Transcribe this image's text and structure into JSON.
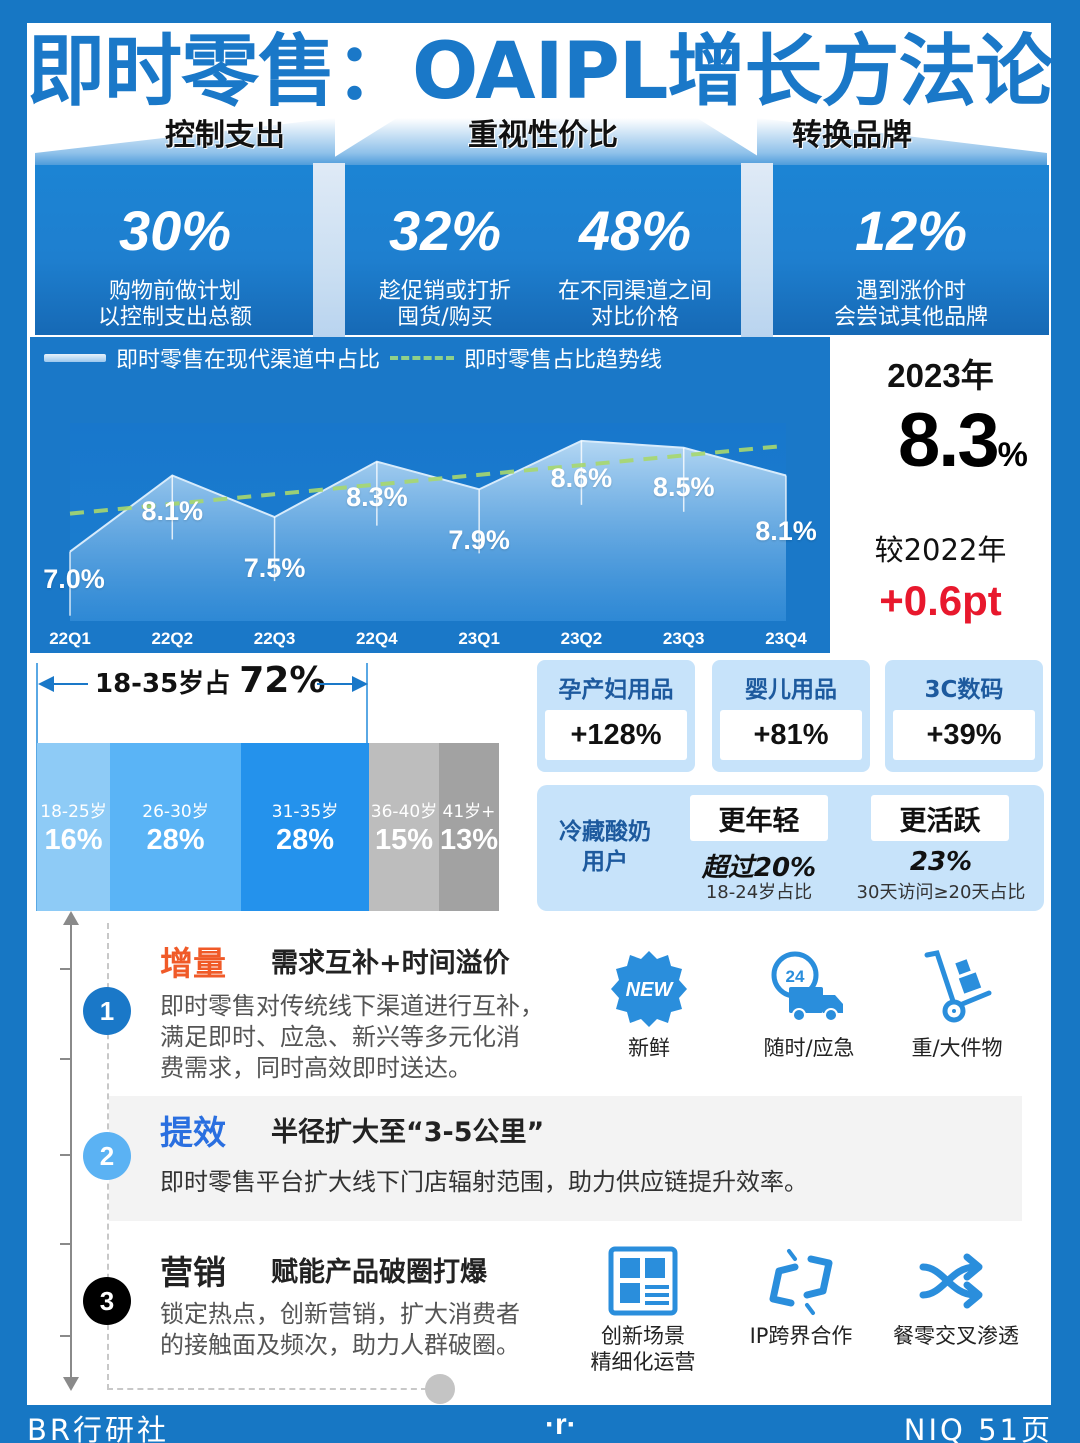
{
  "title": "即时零售：OAIPL增长方法论",
  "top_sections": [
    {
      "heading": "控制支出",
      "stats": [
        {
          "value": "30%",
          "desc_line1": "购物前做计划",
          "desc_line2": "以控制支出总额"
        }
      ]
    },
    {
      "heading": "重视性价比",
      "stats": [
        {
          "value": "32%",
          "desc_line1": "趁促销或打折",
          "desc_line2": "囤货/购买"
        },
        {
          "value": "48%",
          "desc_line1": "在不同渠道之间",
          "desc_line2": "对比价格"
        }
      ]
    },
    {
      "heading": "转换品牌",
      "stats": [
        {
          "value": "12%",
          "desc_line1": "遇到涨价时",
          "desc_line2": "会尝试其他品牌"
        }
      ]
    }
  ],
  "chart": {
    "legend_area": "即时零售在现代渠道中占比",
    "legend_trend": "即时零售占比趋势线",
    "colors": {
      "background": "#1a78c8",
      "area_top": "#bcdcf5",
      "trend": "#a8d86e"
    }
  },
  "chart_data": {
    "type": "area",
    "title": "",
    "categories": [
      "22Q1",
      "22Q2",
      "22Q3",
      "22Q4",
      "23Q1",
      "23Q2",
      "23Q3",
      "23Q4"
    ],
    "series": [
      {
        "name": "即时零售在现代渠道中占比",
        "values": [
          7.0,
          8.1,
          7.5,
          8.3,
          7.9,
          8.6,
          8.5,
          8.1
        ],
        "labels": [
          "7.0%",
          "8.1%",
          "7.5%",
          "8.3%",
          "7.9%",
          "8.6%",
          "8.5%",
          "8.1%"
        ]
      },
      {
        "name": "即时零售占比趋势线",
        "type": "line",
        "style": "dashed",
        "values": [
          7.55,
          7.69,
          7.83,
          7.97,
          8.11,
          8.25,
          8.39,
          8.53
        ]
      }
    ],
    "xlabel": "",
    "ylabel": "",
    "ylim": [
      6.0,
      8.8
    ],
    "grid": false,
    "legend_position": "top-left"
  },
  "kpi": {
    "year": "2023年",
    "value": "8.3",
    "unit": "%",
    "compare_label": "较2022年",
    "delta": "+0.6pt"
  },
  "age": {
    "headline_prefix": "18-35岁占 ",
    "headline_value": "72%",
    "groups": [
      {
        "label": "18-25岁",
        "value": "16%",
        "color": "#8ecbf6"
      },
      {
        "label": "26-30岁",
        "value": "28%",
        "color": "#5ab4f6"
      },
      {
        "label": "31-35岁",
        "value": "28%",
        "color": "#2492ec"
      },
      {
        "label": "36-40岁",
        "value": "15%",
        "color": "#bdbdbd"
      },
      {
        "label": "41岁+",
        "value": "13%",
        "color": "#a2a2a2"
      }
    ]
  },
  "categories": [
    {
      "name": "孕产妇用品",
      "value": "+128%"
    },
    {
      "name": "婴儿用品",
      "value": "+81%"
    },
    {
      "name": "3C数码",
      "value": "+39%"
    }
  ],
  "yogurt": {
    "name_line1": "冷藏酸奶",
    "name_line2": "用户",
    "items": [
      {
        "tag": "更年轻",
        "stat": "超过20%",
        "sub": "18-24岁占比"
      },
      {
        "tag": "更活跃",
        "stat": "23%",
        "sub": "30天访问≥20天占比"
      }
    ]
  },
  "steps": [
    {
      "num": "1",
      "title": "增量",
      "title_color": "#f05a28",
      "subtitle": "需求互补+时间溢价",
      "desc": [
        "即时零售对传统线下渠道进行互补，",
        "满足即时、应急、新兴等多元化消",
        "费需求，同时高效即时送达。"
      ],
      "icons": [
        {
          "icon": "new-badge-icon",
          "label": "新鲜"
        },
        {
          "icon": "delivery-24h-icon",
          "label": "随时/应急"
        },
        {
          "icon": "hand-truck-icon",
          "label": "重/大件物"
        }
      ]
    },
    {
      "num": "2",
      "title": "提效",
      "title_color": "#2a6fe0",
      "subtitle": "半径扩大至“3-5公里”",
      "desc": [
        "即时零售平台扩大线下门店辐射范围，助力供应链提升效率。"
      ]
    },
    {
      "num": "3",
      "title": "营销",
      "title_color": "#222222",
      "subtitle": "赋能产品破圈打爆",
      "desc": [
        "锁定热点，创新营销，扩大消费者",
        "的接触面及频次，助力人群破圈。"
      ],
      "icons": [
        {
          "icon": "layout-grid-icon",
          "label": "创新场景",
          "label2": "精细化运营"
        },
        {
          "icon": "link-break-icon",
          "label": "IP跨界合作"
        },
        {
          "icon": "shuffle-icon",
          "label": "餐零交叉渗透"
        }
      ]
    }
  ],
  "footer": {
    "left": "BR行研社",
    "logo": "·r·",
    "right": "NIQ 51页"
  }
}
